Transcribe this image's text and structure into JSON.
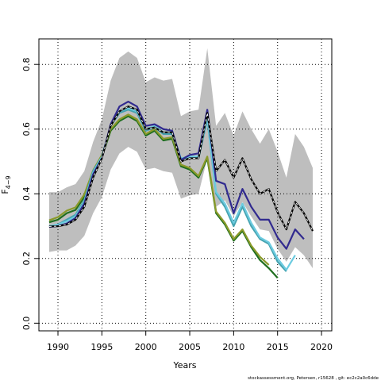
{
  "chart_data": {
    "type": "line",
    "x_label": "Years",
    "y_label": {
      "main": "F",
      "subscript": "4−9"
    },
    "footer": "stockassessment.org, Petersen, r15628 , git: ec2c2a0c6dde",
    "x": [
      1989,
      1990,
      1991,
      1992,
      1993,
      1994,
      1995,
      1996,
      1997,
      1998,
      1999,
      2000,
      2001,
      2002,
      2003,
      2004,
      2005,
      2006,
      2007,
      2008,
      2009,
      2010,
      2011,
      2012,
      2013,
      2014,
      2015,
      2016,
      2017,
      2018,
      2019
    ],
    "xlim": [
      1987.83,
      2021.17
    ],
    "xticks": [
      1990,
      1995,
      2000,
      2005,
      2010,
      2015,
      2020
    ],
    "ylim": [
      -0.0237,
      0.879
    ],
    "yticks": [
      {
        "value": 0,
        "label": "0.0"
      },
      0.2,
      0.4,
      0.6,
      0.8
    ],
    "grid": true,
    "band": {
      "color": "#bebebe",
      "upper": [
        0.405,
        0.405,
        0.42,
        0.43,
        0.47,
        0.56,
        0.63,
        0.75,
        0.82,
        0.84,
        0.82,
        0.745,
        0.76,
        0.75,
        0.755,
        0.64,
        0.655,
        0.66,
        0.85,
        0.61,
        0.65,
        0.58,
        0.655,
        0.6,
        0.555,
        0.6,
        0.53,
        0.45,
        0.585,
        0.545,
        0.48
      ],
      "lower": [
        0.22,
        0.225,
        0.225,
        0.24,
        0.27,
        0.34,
        0.39,
        0.475,
        0.525,
        0.545,
        0.53,
        0.475,
        0.48,
        0.47,
        0.465,
        0.385,
        0.395,
        0.4,
        0.51,
        0.36,
        0.38,
        0.33,
        0.375,
        0.33,
        0.29,
        0.285,
        0.23,
        0.19,
        0.235,
        0.21,
        0.17
      ]
    },
    "series": [
      {
        "color": "#1f6e1f",
        "values": [
          0.312,
          0.32,
          0.34,
          0.35,
          0.39,
          0.465,
          0.515,
          0.595,
          0.625,
          0.64,
          0.625,
          0.58,
          0.595,
          0.565,
          0.57,
          0.485,
          0.475,
          0.45,
          0.51,
          0.34,
          0.305,
          0.255,
          0.285,
          0.235,
          0.195,
          0.17,
          0.14,
          null,
          null,
          null,
          null
        ]
      },
      {
        "color": "#8a9a2a",
        "values": [
          0.318,
          0.328,
          0.348,
          0.358,
          0.398,
          0.472,
          0.52,
          0.6,
          0.63,
          0.645,
          0.63,
          0.585,
          0.6,
          0.57,
          0.575,
          0.49,
          0.48,
          0.455,
          0.515,
          0.345,
          0.31,
          0.26,
          0.29,
          0.24,
          0.205,
          0.18,
          null,
          null,
          null,
          null,
          null
        ]
      },
      {
        "color": "#46a3b0",
        "values": [
          0.3,
          0.305,
          0.32,
          0.335,
          0.38,
          0.47,
          0.515,
          0.61,
          0.65,
          0.66,
          0.65,
          0.595,
          0.605,
          0.585,
          0.585,
          0.505,
          0.51,
          0.51,
          0.63,
          0.4,
          0.36,
          0.3,
          0.36,
          0.3,
          0.26,
          0.245,
          0.19,
          0.16,
          null,
          null,
          null
        ]
      },
      {
        "color": "#6ccbe0",
        "values": [
          0.3,
          0.305,
          0.315,
          0.33,
          0.375,
          0.465,
          0.515,
          0.61,
          0.655,
          0.665,
          0.655,
          0.6,
          0.61,
          0.59,
          0.59,
          0.51,
          0.515,
          0.515,
          0.635,
          0.405,
          0.37,
          0.31,
          0.37,
          0.31,
          0.265,
          0.25,
          0.2,
          0.165,
          0.21,
          null,
          null
        ]
      },
      {
        "color": "#312a8f",
        "values": [
          0.298,
          0.3,
          0.308,
          0.325,
          0.37,
          0.46,
          0.51,
          0.615,
          0.67,
          0.685,
          0.67,
          0.61,
          0.615,
          0.6,
          0.595,
          0.505,
          0.52,
          0.525,
          0.66,
          0.44,
          0.43,
          0.34,
          0.415,
          0.36,
          0.32,
          0.32,
          0.265,
          0.23,
          0.29,
          0.26,
          null
        ]
      },
      {
        "color": "#000000",
        "dashed": true,
        "values": [
          0.299,
          0.3,
          0.305,
          0.32,
          0.36,
          0.45,
          0.51,
          0.61,
          0.655,
          0.67,
          0.66,
          0.6,
          0.605,
          0.59,
          0.59,
          0.5,
          0.51,
          0.51,
          0.65,
          0.47,
          0.505,
          0.45,
          0.51,
          0.445,
          0.4,
          0.415,
          0.343,
          0.29,
          0.375,
          0.34,
          0.285
        ]
      }
    ]
  }
}
